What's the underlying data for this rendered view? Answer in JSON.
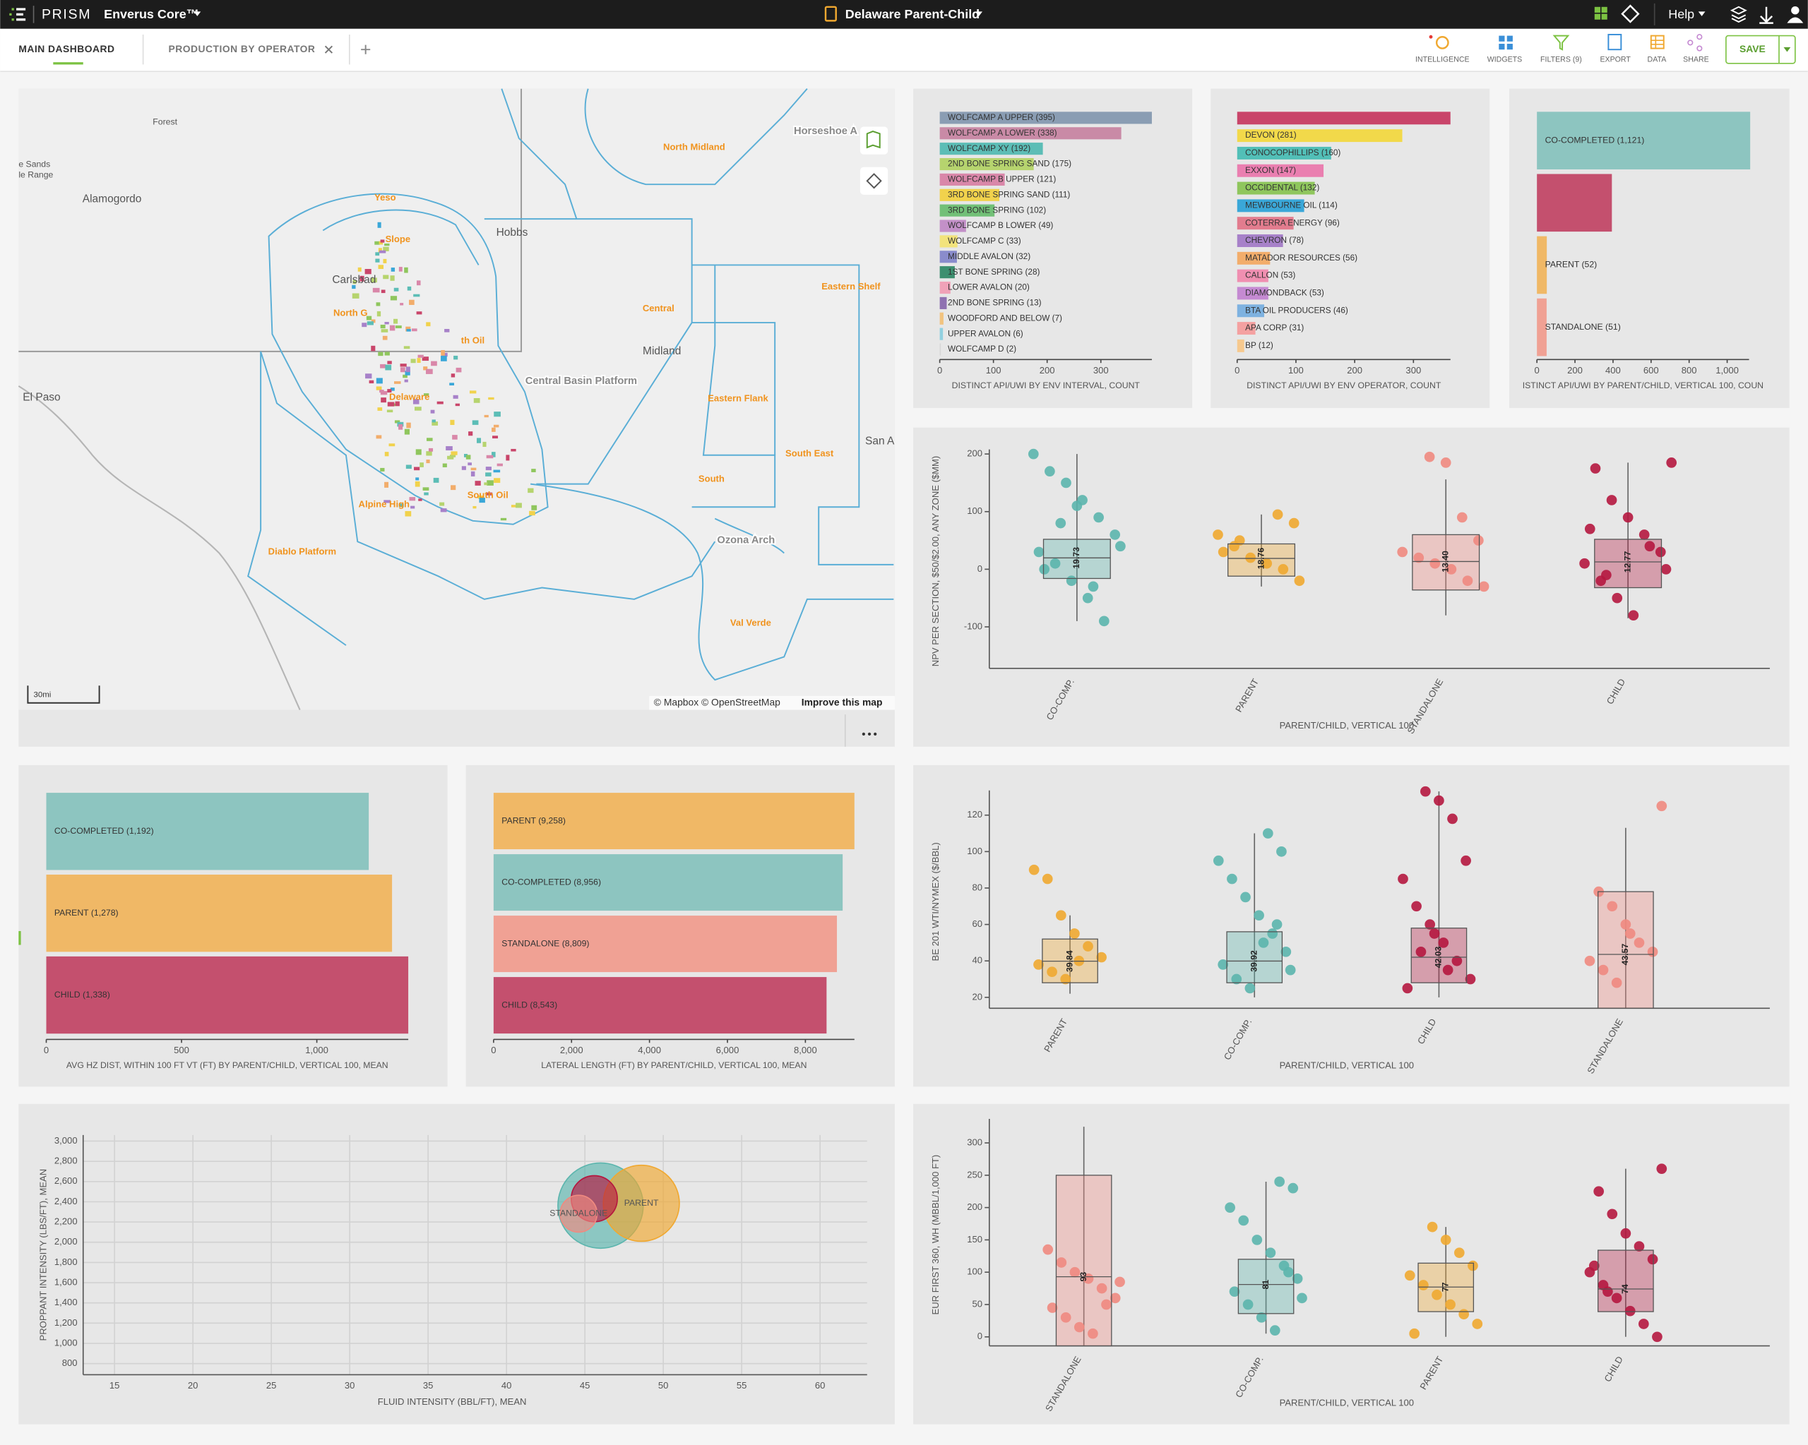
{
  "header": {
    "brand": "PRISM",
    "product": "Enverus Core™",
    "project": "Delaware Parent-Child",
    "help": "Help"
  },
  "tabs": [
    "MAIN DASHBOARD",
    "PRODUCTION BY OPERATOR"
  ],
  "toolbar": [
    "INTELLIGENCE",
    "WIDGETS",
    "FILTERS (9)",
    "EXPORT",
    "DATA",
    "SHARE"
  ],
  "save": "SAVE",
  "map": {
    "labels": [
      "Forest",
      "Horseshoe A",
      "North Midland",
      "e Sands",
      "le Range",
      "Alamogordo",
      "Yeso",
      "Slope",
      "Hobbs",
      "Carlsbad",
      "North G",
      "Eastern Shelf",
      "Central",
      "Midland",
      "th Oil",
      "Central Basin Platform",
      "El Paso",
      "Delaware",
      "Eastern Flank",
      "San A",
      "South East",
      "South",
      "Alpine High",
      "South Oil",
      "Ozona Arch",
      "Diablo Platform",
      "Val Verde"
    ],
    "scale": "30mi",
    "attribution": "© Mapbox © OpenStreetMap",
    "improve": "Improve this map"
  },
  "chart_data": [
    {
      "type": "bar",
      "categories": [
        "WOLFCAMP A UPPER (395)",
        "WOLFCAMP A LOWER (338)",
        "WOLFCAMP XY (192)",
        "2ND BONE SPRING SAND (175)",
        "WOLFCAMP B UPPER (121)",
        "3RD BONE SPRING SAND (111)",
        "3RD BONE SPRING (102)",
        "WOLFCAMP B LOWER (49)",
        "WOLFCAMP C (33)",
        "MIDDLE AVALON (32)",
        "1ST BONE SPRING (28)",
        "LOWER AVALON (20)",
        "2ND BONE SPRING (13)",
        "WOODFORD AND BELOW (7)",
        "UPPER AVALON (6)",
        "WOLFCAMP D (2)"
      ],
      "values": [
        395,
        338,
        192,
        175,
        121,
        111,
        102,
        49,
        33,
        32,
        28,
        20,
        13,
        7,
        6,
        2
      ],
      "colors": [
        "#8a9db3",
        "#c98aa6",
        "#5cbdb6",
        "#b6d46e",
        "#d987a9",
        "#f1d24c",
        "#72c077",
        "#c390c8",
        "#f2e37c",
        "#8a8ccc",
        "#3d8f6f",
        "#f0a2b8",
        "#8f71b1",
        "#f1c37f",
        "#91d0df",
        "#d6d6d6"
      ],
      "xlim": [
        0,
        395
      ],
      "xticks": [
        0,
        100,
        200,
        300
      ],
      "xlabel": "DISTINCT API/UWI BY ENV INTERVAL, COUNT"
    },
    {
      "type": "bar",
      "categories": [
        null,
        "DEVON (281)",
        "CONOCOPHILLIPS (160)",
        "EXXON (147)",
        "OCCIDENTAL (132)",
        "MEWBOURNE OIL (114)",
        "COTERRA ENERGY (96)",
        "CHEVRON (78)",
        "MATADOR RESOURCES (56)",
        "CALLON (53)",
        "DIAMONDBACK (53)",
        "BTA OIL PRODUCERS (46)",
        "APA CORP (31)",
        "BP (12)"
      ],
      "values": [
        363,
        281,
        160,
        147,
        132,
        114,
        96,
        78,
        56,
        53,
        53,
        46,
        31,
        12
      ],
      "colors": [
        "#c9456a",
        "#f2d94a",
        "#52bfb7",
        "#ea7fb0",
        "#8fc65d",
        "#3aa7d8",
        "#e27c8e",
        "#a781c9",
        "#f2ad6b",
        "#f08fb1",
        "#c58ad2",
        "#7eb2e0",
        "#f4a1a1",
        "#f6c98e"
      ],
      "xlim": [
        0,
        363
      ],
      "xticks": [
        0,
        100,
        200,
        300
      ],
      "xlabel": "DISTINCT API/UWI BY ENV OPERATOR, COUNT"
    },
    {
      "type": "bar",
      "categories": [
        "CO-COMPLETED (1,121)",
        null,
        "PARENT (52)",
        "STANDALONE (51)"
      ],
      "values": [
        1121,
        394,
        52,
        51
      ],
      "colors": [
        "#8dc5c0",
        "#c4506e",
        "#f0b866",
        "#f0a194"
      ],
      "xlim": [
        0,
        1115
      ],
      "xticks": [
        0,
        200,
        400,
        600,
        800,
        {
          "value": 1000,
          "label": "1,000"
        }
      ],
      "xlabel": "ISTINCT API/UWI BY PARENT/CHILD, VERTICAL 100, COUN"
    },
    {
      "type": "box",
      "categories": [
        "CO-COMP.",
        "PARENT",
        "STANDALONE",
        "CHILD"
      ],
      "colors": [
        "#5bb5ad",
        "#f0a830",
        "#f08a80",
        "#b5173f"
      ],
      "boxes": [
        {
          "low": -90,
          "q1": -16,
          "median": 19.73,
          "q3": 52,
          "high": 200
        },
        {
          "low": -30,
          "q1": -12,
          "median": 18.76,
          "q3": 44,
          "high": 95
        },
        {
          "low": -80,
          "q1": -36,
          "median": 13.4,
          "q3": 60,
          "high": 156
        },
        {
          "low": -85,
          "q1": -32,
          "median": 12.77,
          "q3": 52,
          "high": 185
        }
      ],
      "median_labels": [
        "19.73",
        "18.76",
        "13.40",
        "12.77"
      ],
      "points": [
        [
          200,
          170,
          150,
          120,
          90,
          60,
          30,
          10,
          -20,
          -50,
          -90,
          40,
          0,
          80,
          110,
          -30
        ],
        [
          95,
          80,
          60,
          40,
          20,
          10,
          0,
          -20,
          30,
          50
        ],
        [
          195,
          185,
          90,
          50,
          30,
          20,
          10,
          0,
          -20,
          -30
        ],
        [
          185,
          175,
          120,
          90,
          60,
          30,
          10,
          -20,
          -50,
          -80,
          40,
          0,
          70,
          -10
        ]
      ],
      "ylim": [
        -172,
        200
      ],
      "yticks": [
        -100,
        0,
        100,
        200
      ],
      "xlabel": "PARENT/CHILD, VERTICAL 100",
      "ylabel": "NPV PER SECTION, $50/$2.00, ANY ZONE ($MM)"
    },
    {
      "type": "bar",
      "categories": [
        "CO-COMPLETED (1,192)",
        "PARENT (1,278)",
        "CHILD (1,338)"
      ],
      "values": [
        1192,
        1278,
        1338
      ],
      "colors": [
        "#8dc5c0",
        "#f0b866",
        "#c4506e"
      ],
      "xlim": [
        0,
        1338
      ],
      "xticks": [
        0,
        500,
        {
          "value": 1000,
          "label": "1,000"
        }
      ],
      "xlabel": "AVG HZ DIST, WITHIN 100 FT VT (FT) BY PARENT/CHILD, VERTICAL 100, MEAN"
    },
    {
      "type": "bar",
      "categories": [
        "PARENT (9,258)",
        "CO-COMPLETED (8,956)",
        "STANDALONE (8,809)",
        "CHILD (8,543)"
      ],
      "values": [
        9258,
        8956,
        8809,
        8543
      ],
      "colors": [
        "#f0b866",
        "#8dc5c0",
        "#f0a194",
        "#c4506e"
      ],
      "xlim": [
        0,
        9258
      ],
      "xticks": [
        0,
        {
          "value": 2000,
          "label": "2,000"
        },
        {
          "value": 4000,
          "label": "4,000"
        },
        {
          "value": 6000,
          "label": "6,000"
        },
        {
          "value": 8000,
          "label": "8,000"
        }
      ],
      "xlabel": "LATERAL LENGTH (FT) BY PARENT/CHILD, VERTICAL 100, MEAN"
    },
    {
      "type": "box",
      "categories": [
        "PARENT",
        "CO-COMP.",
        "CHILD",
        "STANDALONE"
      ],
      "colors": [
        "#f0a830",
        "#5bb5ad",
        "#b5173f",
        "#f08a80"
      ],
      "boxes": [
        {
          "low": 22,
          "q1": 28,
          "median": 39.84,
          "q3": 52,
          "high": 65
        },
        {
          "low": 20,
          "q1": 28,
          "median": 39.92,
          "q3": 56,
          "high": 110
        },
        {
          "low": 20,
          "q1": 28,
          "median": 42.03,
          "q3": 58,
          "high": 133
        },
        {
          "low": 14,
          "q1": 14,
          "median": 43.57,
          "q3": 78,
          "high": 113
        }
      ],
      "median_labels": [
        "39.84",
        "39.92",
        "42.03",
        "43.57"
      ],
      "points": [
        [
          90,
          85,
          65,
          55,
          48,
          42,
          38,
          34,
          30,
          40
        ],
        [
          110,
          100,
          95,
          85,
          75,
          65,
          55,
          45,
          38,
          30,
          25,
          50,
          60,
          35
        ],
        [
          133,
          128,
          118,
          95,
          85,
          70,
          60,
          50,
          40,
          30,
          25,
          45,
          55,
          35
        ],
        [
          125,
          78,
          70,
          60,
          50,
          45,
          40,
          35,
          28,
          55
        ]
      ],
      "ylim": [
        14,
        131
      ],
      "yticks": [
        20,
        40,
        60,
        80,
        100,
        120
      ],
      "xlabel": "PARENT/CHILD, VERTICAL 100",
      "ylabel": "BE 201 WTI/NYMEX ($/BBL)"
    },
    {
      "type": "bubble",
      "points": [
        {
          "name": null,
          "color": "#5bb5ad",
          "x": 46.0,
          "y": 2362,
          "size": 37
        },
        {
          "name": "PARENT",
          "color": "#f0a830",
          "x": 48.6,
          "y": 2385,
          "size": 33
        },
        {
          "name": null,
          "color": "#b5173f",
          "x": 45.6,
          "y": 2430,
          "size": 20
        },
        {
          "name": "STANDALONE",
          "color": "#f08a80",
          "x": 44.6,
          "y": 2282,
          "size": 16
        }
      ],
      "xlim": [
        13,
        63
      ],
      "xticks": [
        15,
        20,
        25,
        30,
        35,
        40,
        45,
        50,
        55,
        60
      ],
      "ylim": [
        690,
        3060
      ],
      "yticks": [
        800,
        {
          "value": 1000,
          "label": "1,000"
        },
        {
          "value": 1200,
          "label": "1,200"
        },
        {
          "value": 1400,
          "label": "1,400"
        },
        {
          "value": 1600,
          "label": "1,600"
        },
        {
          "value": 1800,
          "label": "1,800"
        },
        {
          "value": 2000,
          "label": "2,000"
        },
        {
          "value": 2200,
          "label": "2,200"
        },
        {
          "value": 2400,
          "label": "2,400"
        },
        {
          "value": 2600,
          "label": "2,600"
        },
        {
          "value": 2800,
          "label": "2,800"
        },
        {
          "value": 3000,
          "label": "3,000"
        }
      ],
      "grid": true,
      "xlabel": "FLUID INTENSITY (BBL/FT), MEAN",
      "ylabel": "PROPPANT INTENSITY (LBS/FT), MEAN"
    },
    {
      "type": "box",
      "categories": [
        "STANDALONE",
        "CO-COMP.",
        "PARENT",
        "CHILD"
      ],
      "colors": [
        "#f08a80",
        "#5bb5ad",
        "#f0a830",
        "#b5173f"
      ],
      "boxes": [
        {
          "low": -14,
          "q1": -14,
          "median": 93,
          "q3": 250,
          "high": 325
        },
        {
          "low": 5,
          "q1": 36,
          "median": 81,
          "q3": 120,
          "high": 240
        },
        {
          "low": 0,
          "q1": 39,
          "median": 77,
          "q3": 114,
          "high": 170
        },
        {
          "low": 0,
          "q1": 39,
          "median": 74,
          "q3": 134,
          "high": 260
        }
      ],
      "median_labels": [
        "93",
        "81",
        "77",
        "74"
      ],
      "points": [
        [
          135,
          115,
          100,
          90,
          75,
          60,
          45,
          30,
          15,
          5,
          50,
          85
        ],
        [
          240,
          230,
          200,
          180,
          150,
          130,
          110,
          90,
          70,
          50,
          30,
          10,
          100,
          60
        ],
        [
          170,
          150,
          130,
          110,
          95,
          80,
          65,
          50,
          35,
          20,
          5
        ],
        [
          260,
          225,
          190,
          160,
          140,
          120,
          100,
          80,
          60,
          40,
          20,
          0,
          110,
          70
        ]
      ],
      "ylim": [
        -14,
        330
      ],
      "yticks": [
        0,
        50,
        100,
        150,
        200,
        250,
        300
      ],
      "xlabel": "PARENT/CHILD, VERTICAL 100",
      "ylabel": "EUR FIRST 360, WH (MBBL/1,000 FT)"
    }
  ]
}
